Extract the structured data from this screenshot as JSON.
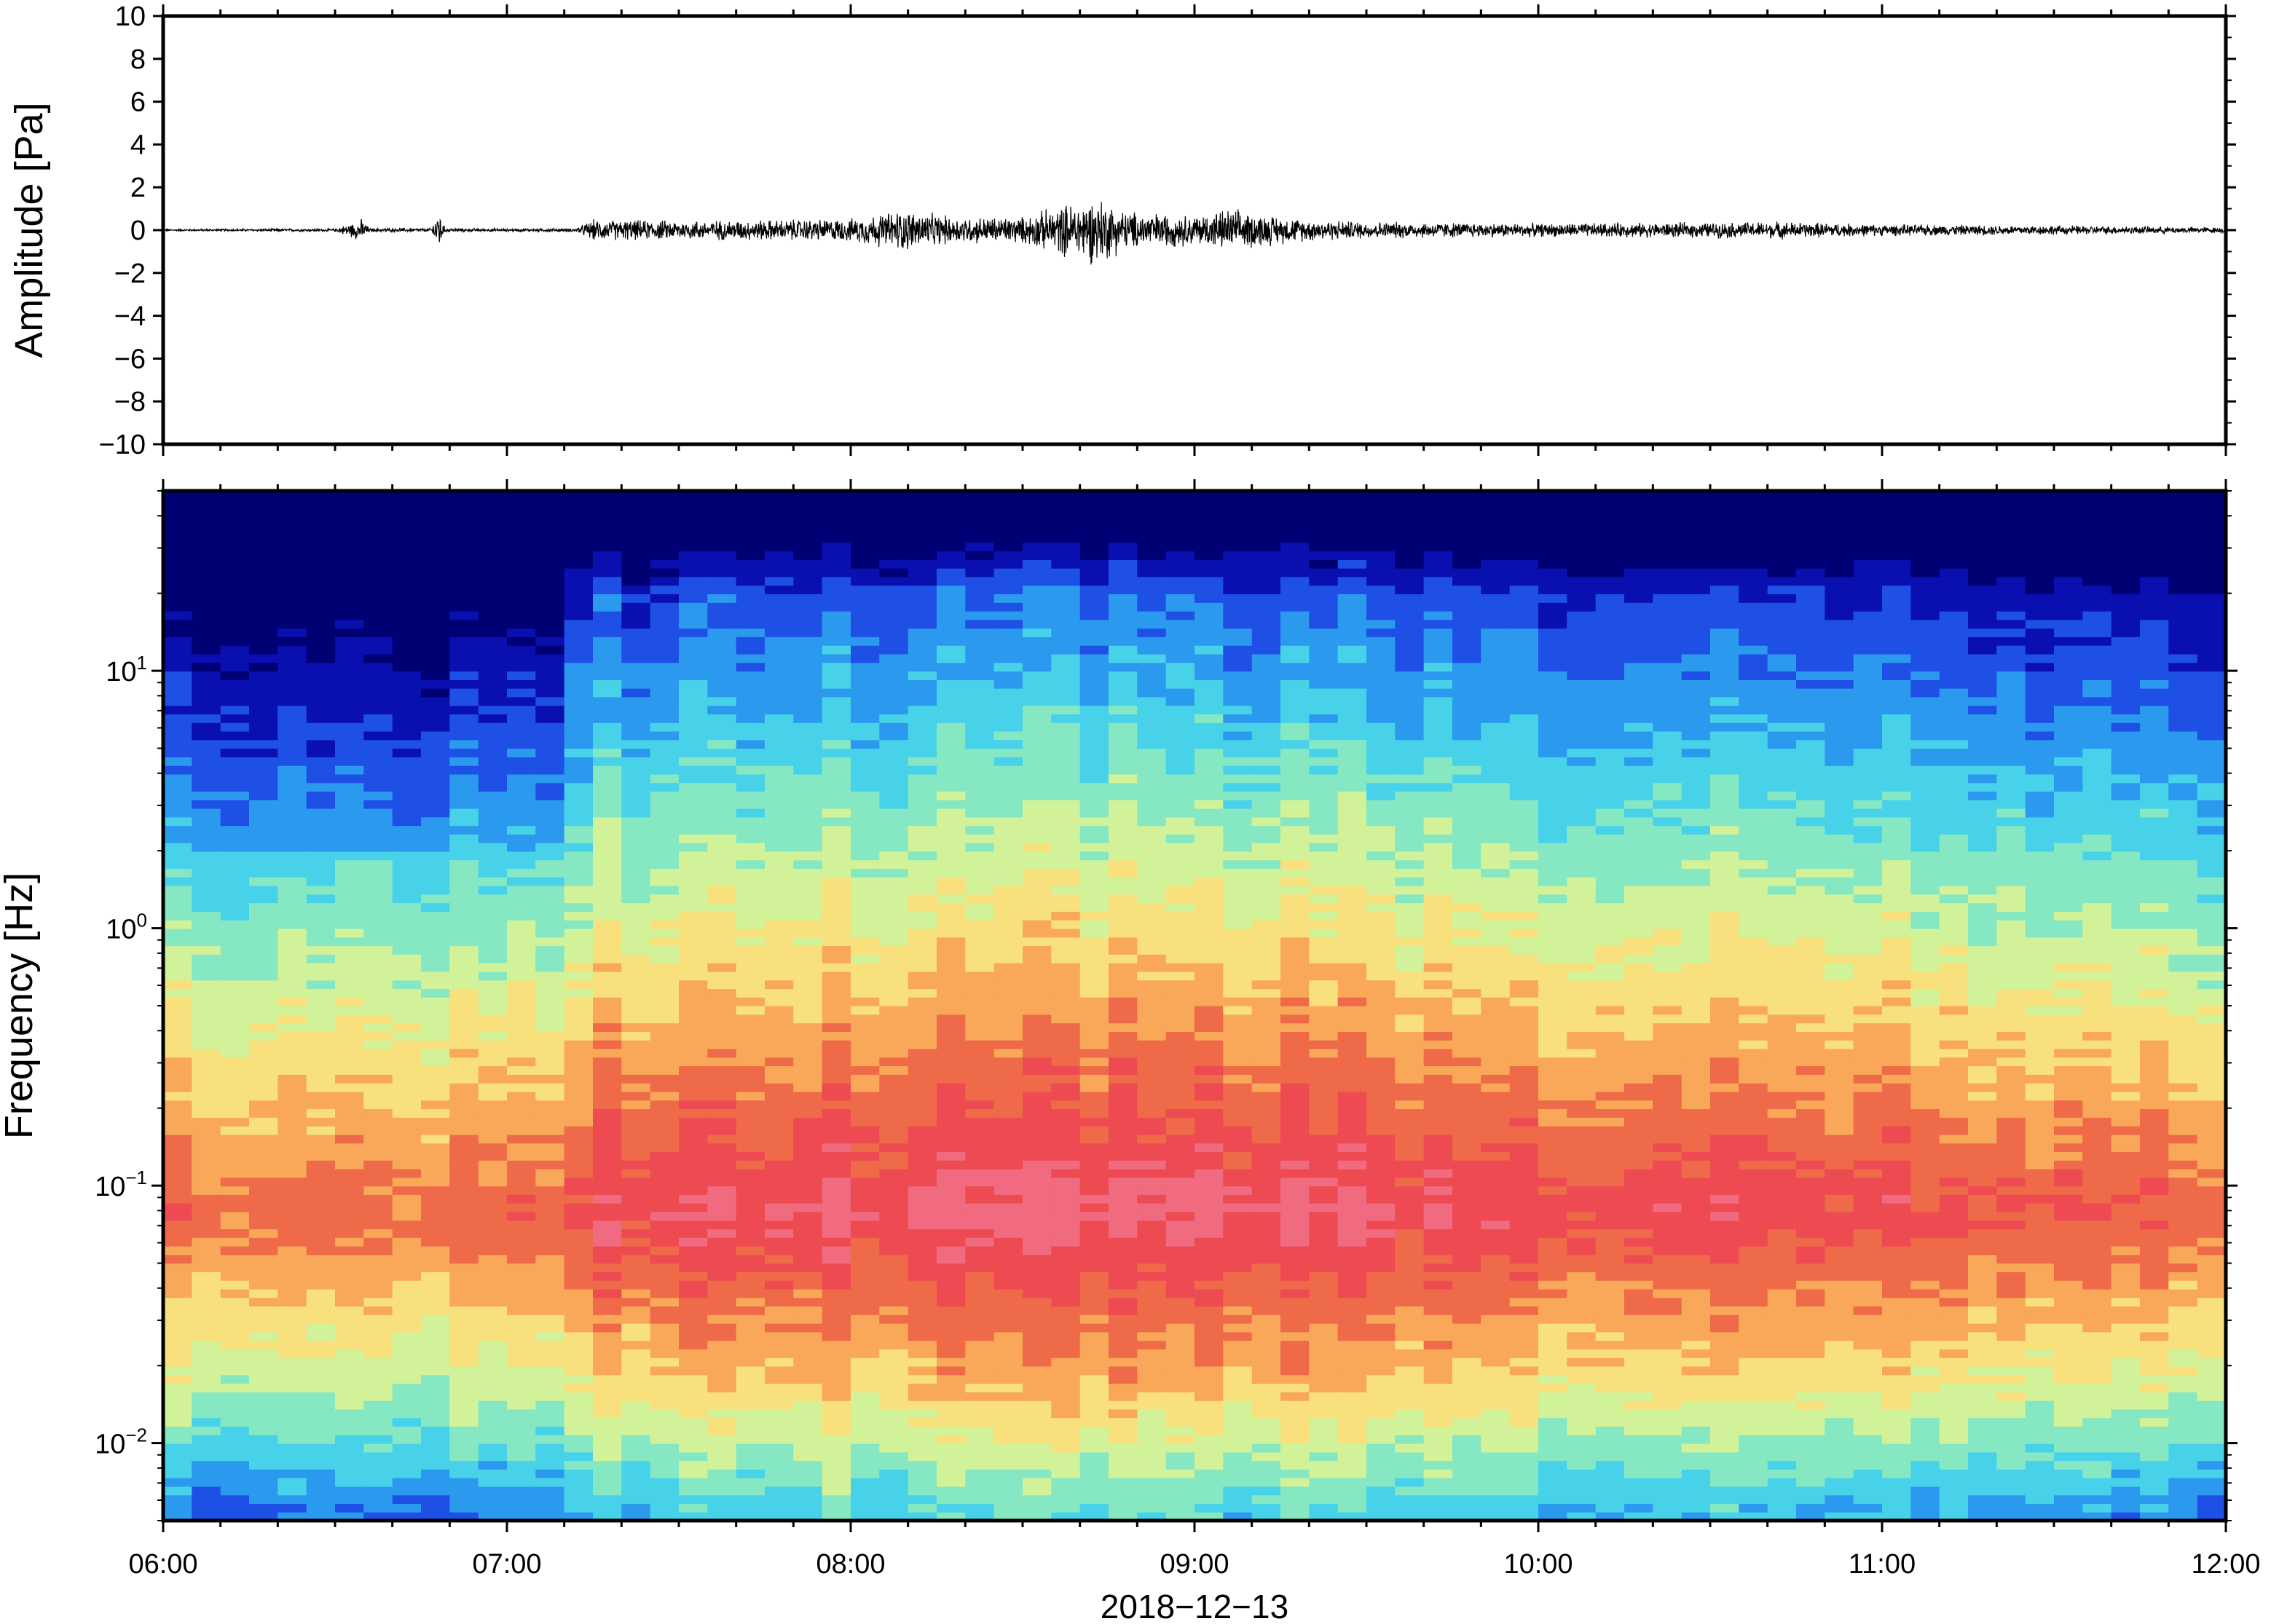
{
  "chart_data": [
    {
      "type": "line",
      "ylabel": "Amplitude [Pa]",
      "ylim": [
        -10,
        10
      ],
      "yticks": [
        10,
        8,
        6,
        4,
        2,
        0,
        -2,
        -4,
        -6,
        -8,
        -10
      ],
      "ytick_labels": [
        "10",
        "8",
        "6",
        "4",
        "2",
        "0",
        "−2",
        "−4",
        "−6",
        "−8",
        "−10"
      ],
      "x_range": [
        "06:00",
        "12:00"
      ],
      "grid": false,
      "envelope": {
        "x_hours": [
          6.0,
          6.5,
          6.58,
          6.6,
          6.78,
          6.8,
          6.82,
          7.0,
          7.2,
          7.25,
          7.5,
          7.8,
          8.0,
          8.15,
          8.3,
          8.5,
          8.65,
          8.72,
          8.8,
          9.0,
          9.1,
          9.3,
          9.5,
          10.0,
          10.5,
          10.7,
          11.0,
          11.5,
          12.0
        ],
        "amplitude": [
          0.05,
          0.08,
          0.6,
          0.1,
          0.1,
          1.2,
          0.1,
          0.07,
          0.1,
          0.55,
          0.5,
          0.55,
          0.6,
          1.1,
          0.7,
          0.7,
          1.5,
          1.8,
          1.0,
          0.8,
          1.1,
          0.6,
          0.45,
          0.35,
          0.4,
          0.45,
          0.3,
          0.25,
          0.15
        ]
      }
    },
    {
      "type": "heatmap",
      "ylabel": "Frequency [Hz]",
      "yscale": "log",
      "ylim": [
        0.005,
        50
      ],
      "ytick_labels": [
        {
          "base": "10",
          "exp": "1",
          "value": 10
        },
        {
          "base": "10",
          "exp": "0",
          "value": 1
        },
        {
          "base": "10",
          "exp": "−1",
          "value": 0.1
        },
        {
          "base": "10",
          "exp": "−2",
          "value": 0.01
        }
      ],
      "xticks": [
        "06:00",
        "07:00",
        "08:00",
        "09:00",
        "10:00",
        "11:00",
        "12:00"
      ],
      "xlabel": "2018−12−13",
      "colormap": "rainbow",
      "colors": [
        "#000075",
        "#0a10b0",
        "#1e50e6",
        "#2b9aee",
        "#48d2ea",
        "#86e8c2",
        "#d2f29a",
        "#f8e07c",
        "#f8a858",
        "#ee6a48",
        "#ee4a52",
        "#f06a80"
      ],
      "features": {
        "quiet_interval_hours": [
          6.0,
          7.2
        ],
        "active_interval_hours": [
          7.2,
          11.2
        ],
        "peak_energy_band_hz": [
          0.03,
          0.2
        ],
        "peak_time_hours": 8.7
      }
    }
  ]
}
